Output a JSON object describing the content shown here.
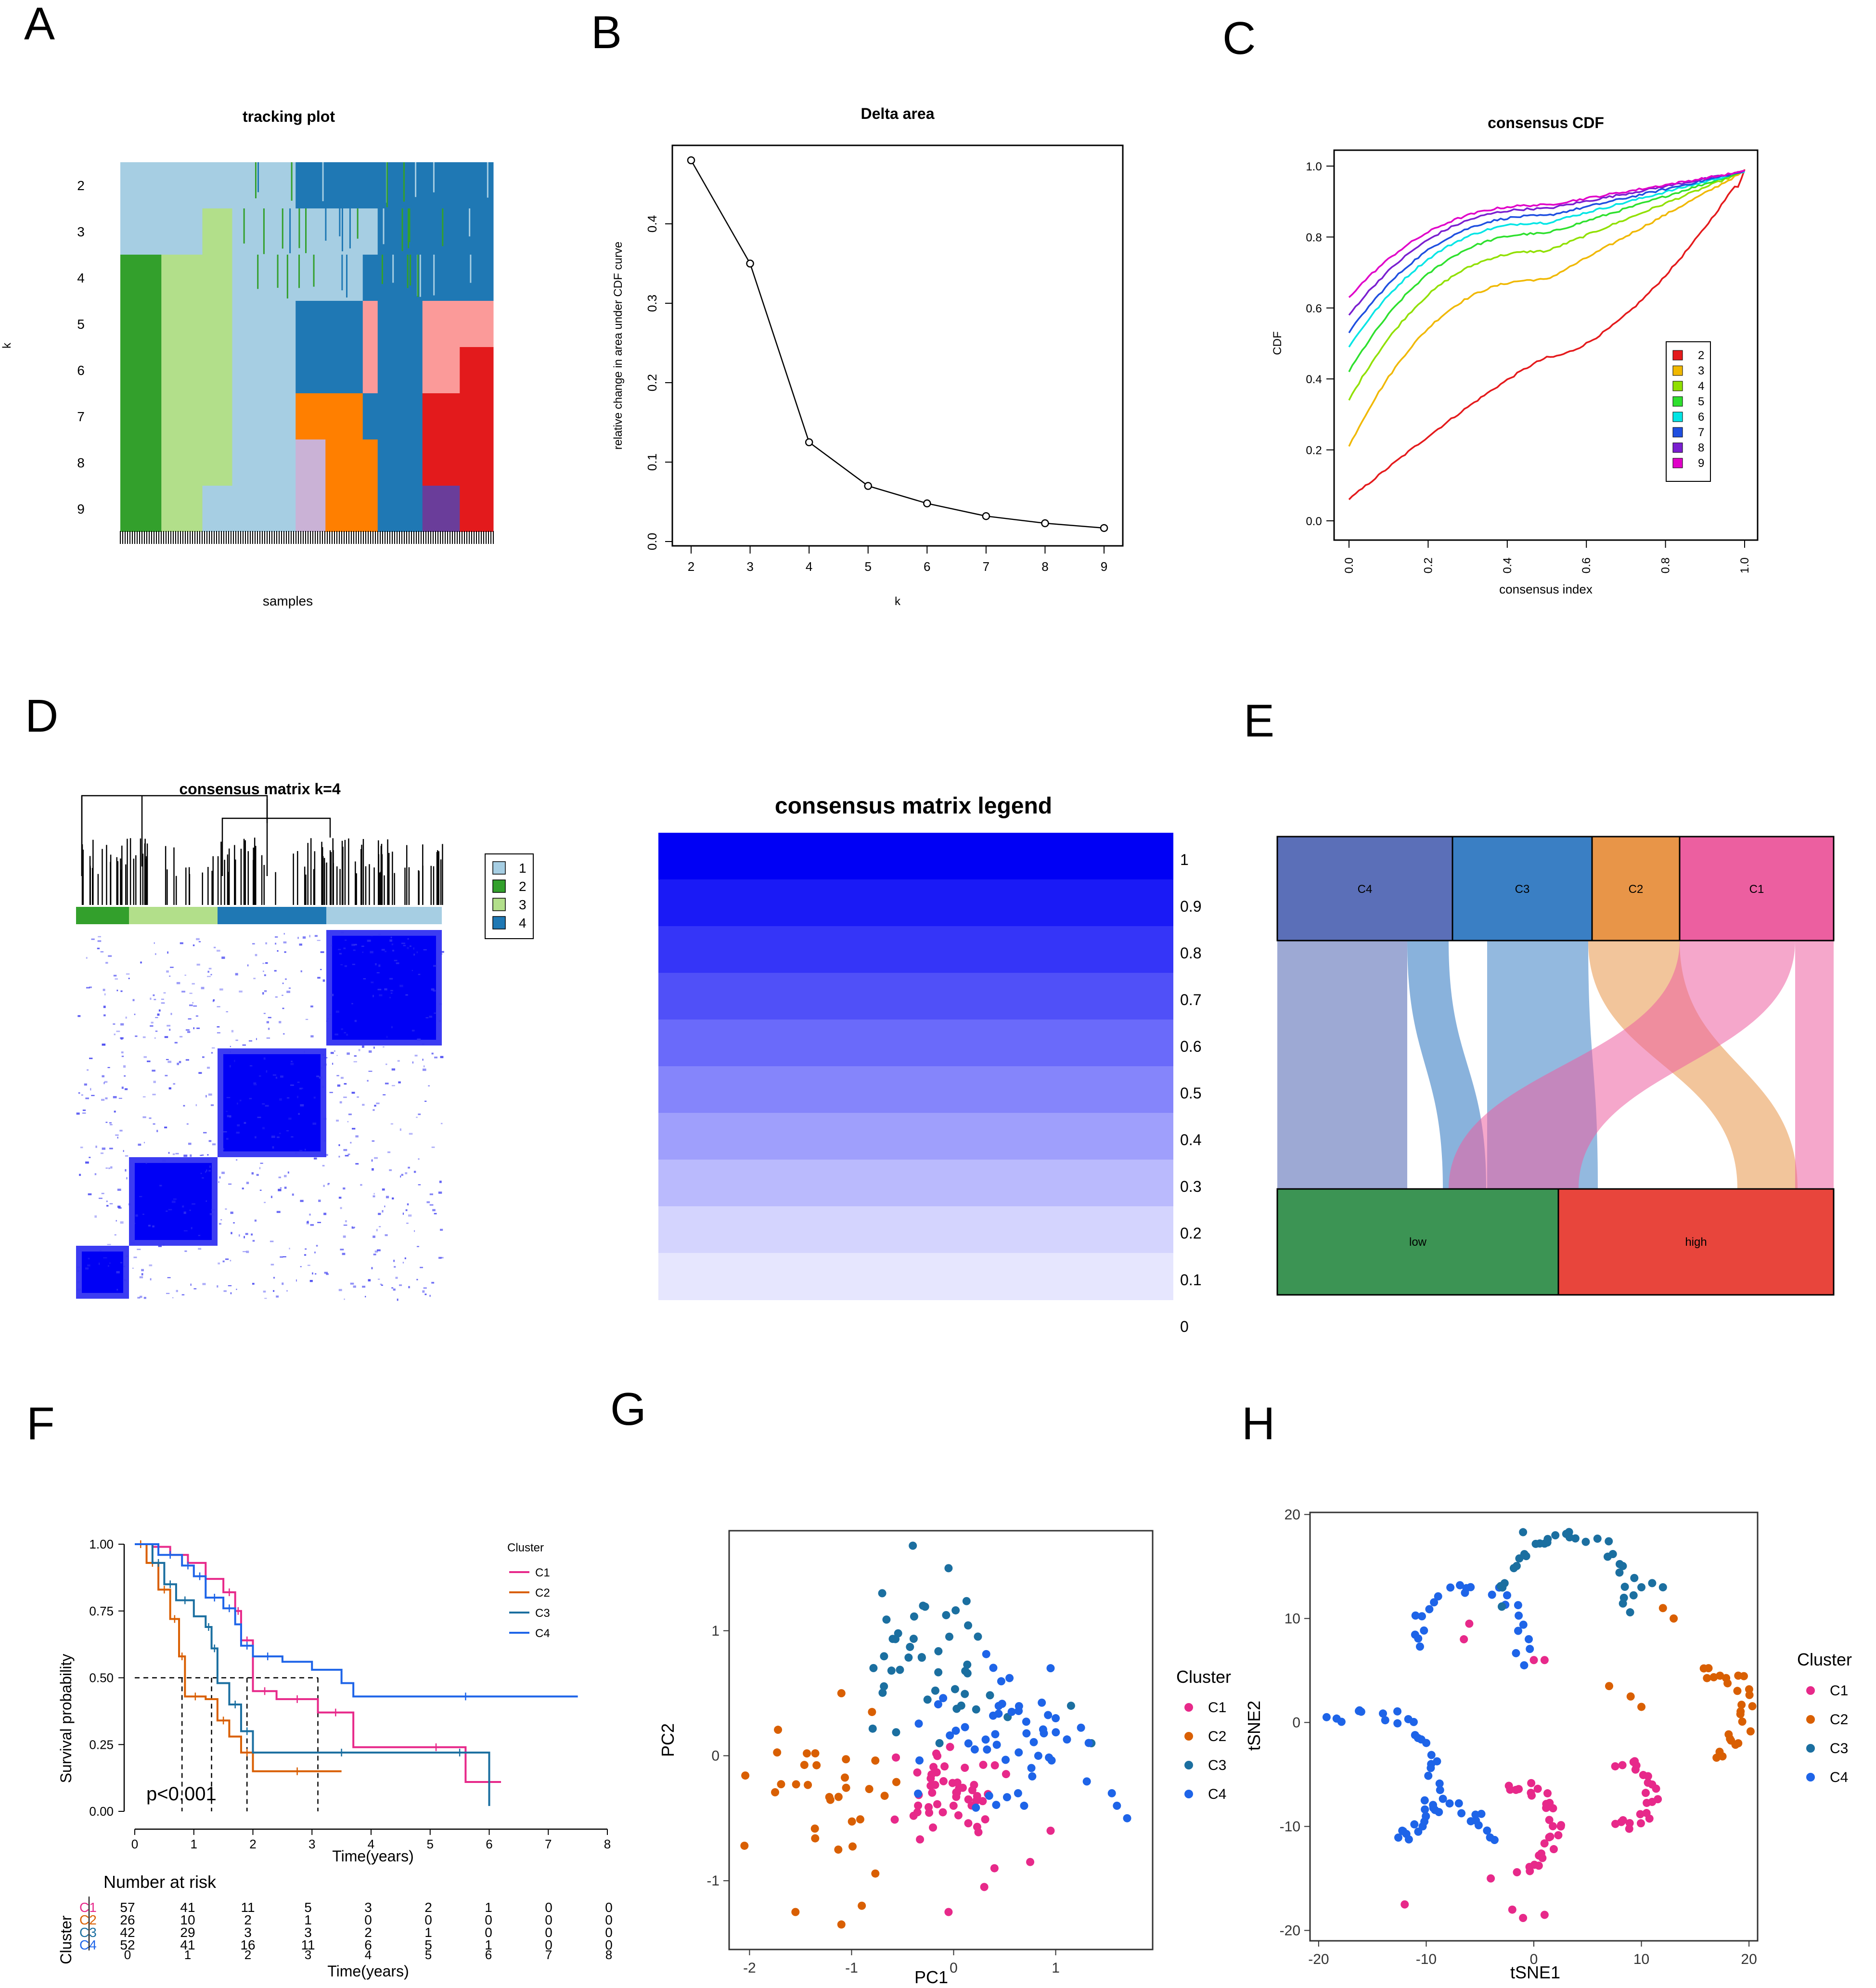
{
  "colors": {
    "k2": "#e41a1c",
    "k3": "#f0b800",
    "k4": "#90e000",
    "k5": "#2ee02e",
    "k6": "#00e5e5",
    "k7": "#1f4fe0",
    "k8": "#7a1fd0",
    "k9": "#e000c8",
    "track1": "#a6cee3",
    "track2": "#33a02c",
    "track3": "#b2df8a",
    "track4": "#1f78b4",
    "track5": "#fb9a99",
    "track6": "#e31a1c",
    "track7": "#ff7f00",
    "track8": "#cab2d6",
    "track9": "#6a3d9a",
    "C1": "#e7298a",
    "C2": "#d95f02",
    "C3": "#1b6fa0",
    "C4": "#1e64e8",
    "low": "#3c9454",
    "high": "#e8453c",
    "boxC4": "#5b6fb8",
    "boxC3": "#3a7fc4",
    "boxC2": "#e89548",
    "boxC1": "#ec5fa0"
  },
  "panel_labels": [
    "A",
    "B",
    "C",
    "D",
    "E",
    "F",
    "G",
    "H"
  ],
  "chart_data": [
    {
      "panel": "A",
      "type": "heatmap",
      "title": "tracking plot",
      "xlabel": "samples",
      "ylabel": "k",
      "rows": [
        "2",
        "3",
        "4",
        "5",
        "6",
        "7",
        "8",
        "9"
      ]
    },
    {
      "panel": "B",
      "type": "line",
      "title": "Delta area",
      "xlabel": "k",
      "ylabel": "relative change in area under CDF curve",
      "x": [
        2,
        3,
        4,
        5,
        6,
        7,
        8,
        9
      ],
      "values": [
        0.48,
        0.35,
        0.125,
        0.07,
        0.048,
        0.032,
        0.023,
        0.017
      ],
      "xlim": [
        2,
        9
      ],
      "ylim": [
        0,
        0.5
      ],
      "yticks": [
        "0.0",
        "0.1",
        "0.2",
        "0.3",
        "0.4"
      ]
    },
    {
      "panel": "C",
      "type": "line",
      "title": "consensus CDF",
      "xlabel": "consensus index",
      "ylabel": "CDF",
      "xlim": [
        0,
        1
      ],
      "ylim": [
        0,
        1
      ],
      "xticks": [
        "0.0",
        "0.2",
        "0.4",
        "0.6",
        "0.8",
        "1.0"
      ],
      "yticks": [
        "0.0",
        "0.2",
        "0.4",
        "0.6",
        "0.8",
        "1.0"
      ],
      "legend": [
        "2",
        "3",
        "4",
        "5",
        "6",
        "7",
        "8",
        "9"
      ],
      "start": [
        0.06,
        0.21,
        0.34,
        0.42,
        0.49,
        0.53,
        0.58,
        0.63
      ],
      "mid": [
        0.46,
        0.68,
        0.76,
        0.81,
        0.84,
        0.86,
        0.88,
        0.89
      ]
    },
    {
      "panel": "D",
      "type": "heatmap",
      "title": "consensus matrix k=4",
      "legend": [
        "1",
        "2",
        "3",
        "4"
      ],
      "legend_title": "consensus matrix legend",
      "scale": [
        "1",
        "0.9",
        "0.8",
        "0.7",
        "0.6",
        "0.5",
        "0.4",
        "0.3",
        "0.2",
        "0.1",
        "0"
      ]
    },
    {
      "panel": "E",
      "type": "other",
      "top": [
        "C4",
        "C3",
        "C2",
        "C1"
      ],
      "bottom": [
        "low",
        "high"
      ]
    },
    {
      "panel": "F",
      "type": "line",
      "xlabel": "Time(years)",
      "ylabel": "Survival probability",
      "legend_title": "Cluster",
      "legend": [
        "C1",
        "C2",
        "C3",
        "C4"
      ],
      "xticks": [
        "0",
        "1",
        "2",
        "3",
        "4",
        "5",
        "6",
        "7",
        "8"
      ],
      "yticks": [
        "0.00",
        "0.25",
        "0.50",
        "0.75",
        "1.00"
      ],
      "pvalue": "p<0.001",
      "risk_title": "Number at risk",
      "risk_ylabel": "Cluster",
      "risk_xlabel": "Time(years)",
      "risk": [
        [
          "57",
          "41",
          "11",
          "5",
          "3",
          "2",
          "1",
          "0",
          "0"
        ],
        [
          "26",
          "10",
          "2",
          "1",
          "0",
          "0",
          "0",
          "0",
          "0"
        ],
        [
          "42",
          "29",
          "3",
          "3",
          "2",
          "1",
          "0",
          "0",
          "0"
        ],
        [
          "52",
          "41",
          "16",
          "11",
          "6",
          "5",
          "1",
          "0",
          "0"
        ]
      ],
      "risk_labels": [
        "C1",
        "C2",
        "C3",
        "C4"
      ]
    },
    {
      "panel": "G",
      "type": "scatter",
      "xlabel": "PC1",
      "ylabel": "PC2",
      "legend_title": "Cluster",
      "legend": [
        "C1",
        "C2",
        "C3",
        "C4"
      ],
      "xlim": [
        -2.2,
        1.95
      ],
      "ylim": [
        -1.55,
        1.8
      ],
      "xticks": [
        "-2",
        "-1",
        "0",
        "1"
      ],
      "yticks": [
        "-1",
        "0",
        "1"
      ]
    },
    {
      "panel": "H",
      "type": "scatter",
      "xlabel": "tSNE1",
      "ylabel": "tSNE2",
      "legend_title": "Cluster",
      "legend": [
        "C1",
        "C2",
        "C3",
        "C4"
      ],
      "xlim": [
        -20.8,
        20.8
      ],
      "ylim": [
        -21,
        20.2
      ],
      "xticks": [
        "-20",
        "-10",
        "0",
        "10",
        "20"
      ],
      "yticks": [
        "-20",
        "-10",
        "0",
        "10",
        "20"
      ]
    }
  ]
}
